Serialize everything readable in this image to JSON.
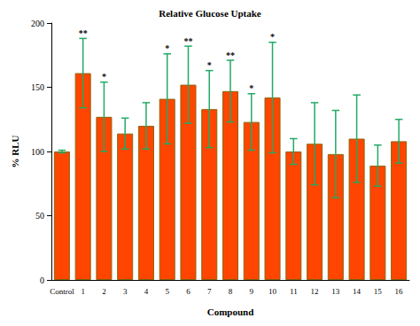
{
  "chart_data": {
    "type": "bar",
    "title": "Relative Glucose Uptake",
    "x_label": "Compound",
    "y_label": "% RLU",
    "categories": [
      "Control",
      "1",
      "2",
      "3",
      "4",
      "5",
      "6",
      "7",
      "8",
      "9",
      "10",
      "11",
      "12",
      "13",
      "14",
      "15",
      "16"
    ],
    "values": [
      100,
      161,
      127,
      114,
      120,
      141,
      152,
      133,
      147,
      123,
      142,
      100,
      106,
      98,
      110,
      89,
      108
    ],
    "errors": [
      1,
      27,
      27,
      12,
      18,
      35,
      30,
      30,
      24,
      22,
      43,
      10,
      32,
      34,
      34,
      16,
      17
    ],
    "annotations": [
      null,
      "**",
      "*",
      null,
      null,
      "*",
      "**",
      "*",
      "**",
      "*",
      "*",
      null,
      null,
      null,
      null,
      null,
      null
    ],
    "color": "#ff4500",
    "error_color": "#22aa66",
    "ylim": [
      0,
      200
    ],
    "yticks": [
      0,
      50,
      100,
      150,
      200
    ],
    "grid": false
  }
}
